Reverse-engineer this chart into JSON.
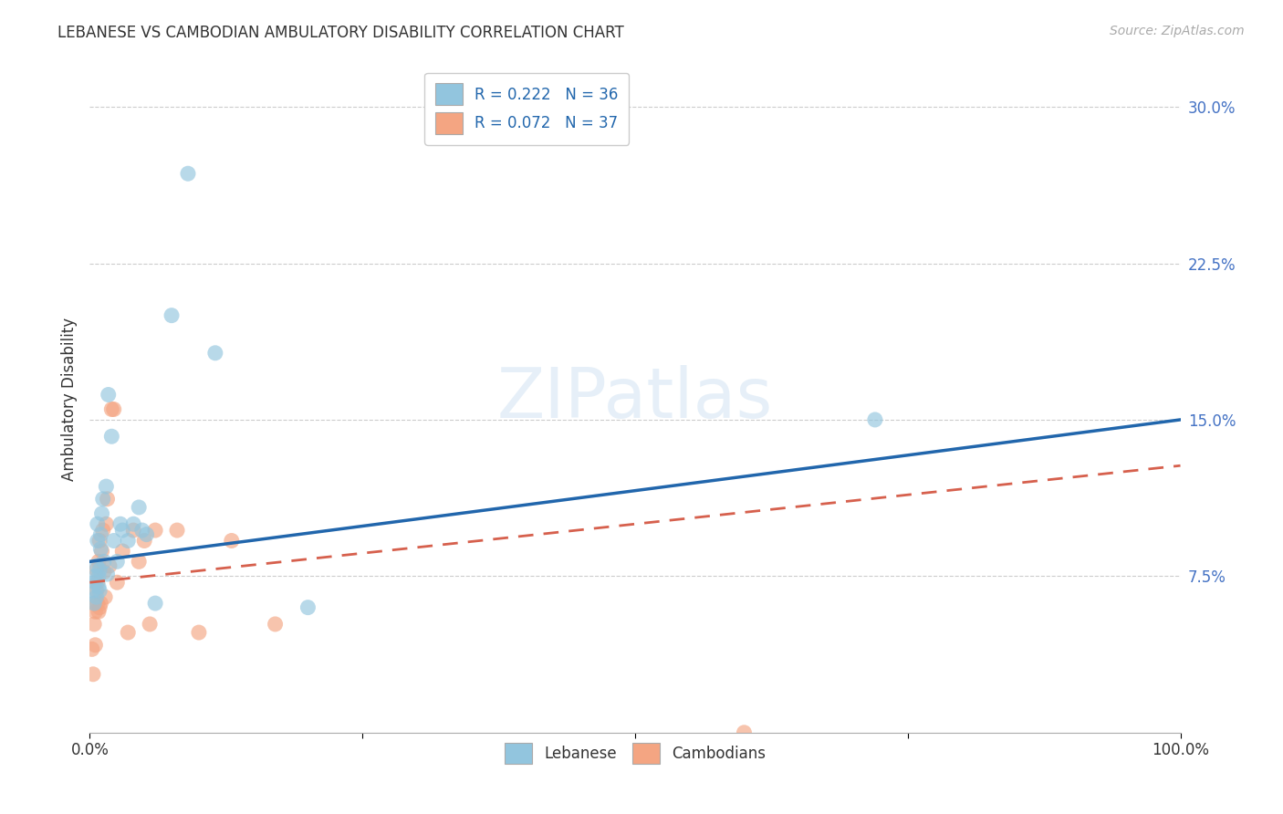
{
  "title": "LEBANESE VS CAMBODIAN AMBULATORY DISABILITY CORRELATION CHART",
  "source": "Source: ZipAtlas.com",
  "ylabel": "Ambulatory Disability",
  "xlabel": "",
  "watermark": "ZIPatlas",
  "legend_r_lebanese": "R = 0.222",
  "legend_n_lebanese": "N = 36",
  "legend_r_cambodian": "R = 0.072",
  "legend_n_cambodian": "N = 37",
  "xlim": [
    0.0,
    1.0
  ],
  "ylim": [
    0.0,
    0.32
  ],
  "xtick_positions": [
    0.0,
    0.25,
    0.5,
    0.75,
    1.0
  ],
  "xtick_labels": [
    "0.0%",
    "",
    "",
    "",
    "100.0%"
  ],
  "ytick_positions": [
    0.075,
    0.15,
    0.225,
    0.3
  ],
  "ytick_labels": [
    "7.5%",
    "15.0%",
    "22.5%",
    "30.0%"
  ],
  "blue_scatter_color": "#92c5de",
  "pink_scatter_color": "#f4a582",
  "blue_line_color": "#2166ac",
  "pink_line_color": "#d6604d",
  "grid_color": "#cccccc",
  "background_color": "#ffffff",
  "blue_line_x0": 0.0,
  "blue_line_y0": 0.082,
  "blue_line_x1": 1.0,
  "blue_line_y1": 0.15,
  "pink_line_x0": 0.0,
  "pink_line_y0": 0.072,
  "pink_line_x1": 1.0,
  "pink_line_y1": 0.128,
  "lebanese_x": [
    0.003,
    0.004,
    0.005,
    0.005,
    0.006,
    0.006,
    0.007,
    0.007,
    0.008,
    0.008,
    0.009,
    0.009,
    0.01,
    0.01,
    0.011,
    0.012,
    0.013,
    0.015,
    0.016,
    0.017,
    0.02,
    0.022,
    0.025,
    0.028,
    0.03,
    0.035,
    0.04,
    0.045,
    0.048,
    0.052,
    0.06,
    0.075,
    0.09,
    0.115,
    0.2,
    0.72
  ],
  "lebanese_y": [
    0.068,
    0.062,
    0.075,
    0.072,
    0.065,
    0.08,
    0.092,
    0.1,
    0.07,
    0.075,
    0.078,
    0.068,
    0.095,
    0.088,
    0.105,
    0.112,
    0.082,
    0.118,
    0.076,
    0.162,
    0.142,
    0.092,
    0.082,
    0.1,
    0.097,
    0.092,
    0.1,
    0.108,
    0.097,
    0.095,
    0.062,
    0.2,
    0.268,
    0.182,
    0.06,
    0.15
  ],
  "cambodian_x": [
    0.002,
    0.003,
    0.004,
    0.004,
    0.005,
    0.005,
    0.006,
    0.006,
    0.007,
    0.007,
    0.008,
    0.008,
    0.009,
    0.009,
    0.01,
    0.011,
    0.012,
    0.013,
    0.014,
    0.015,
    0.016,
    0.018,
    0.02,
    0.022,
    0.025,
    0.03,
    0.035,
    0.04,
    0.045,
    0.05,
    0.055,
    0.06,
    0.08,
    0.1,
    0.13,
    0.17,
    0.6
  ],
  "cambodian_y": [
    0.04,
    0.028,
    0.052,
    0.062,
    0.042,
    0.058,
    0.068,
    0.078,
    0.062,
    0.072,
    0.058,
    0.082,
    0.092,
    0.06,
    0.062,
    0.087,
    0.097,
    0.077,
    0.065,
    0.1,
    0.112,
    0.08,
    0.155,
    0.155,
    0.072,
    0.087,
    0.048,
    0.097,
    0.082,
    0.092,
    0.052,
    0.097,
    0.097,
    0.048,
    0.092,
    0.052,
    0.0
  ]
}
